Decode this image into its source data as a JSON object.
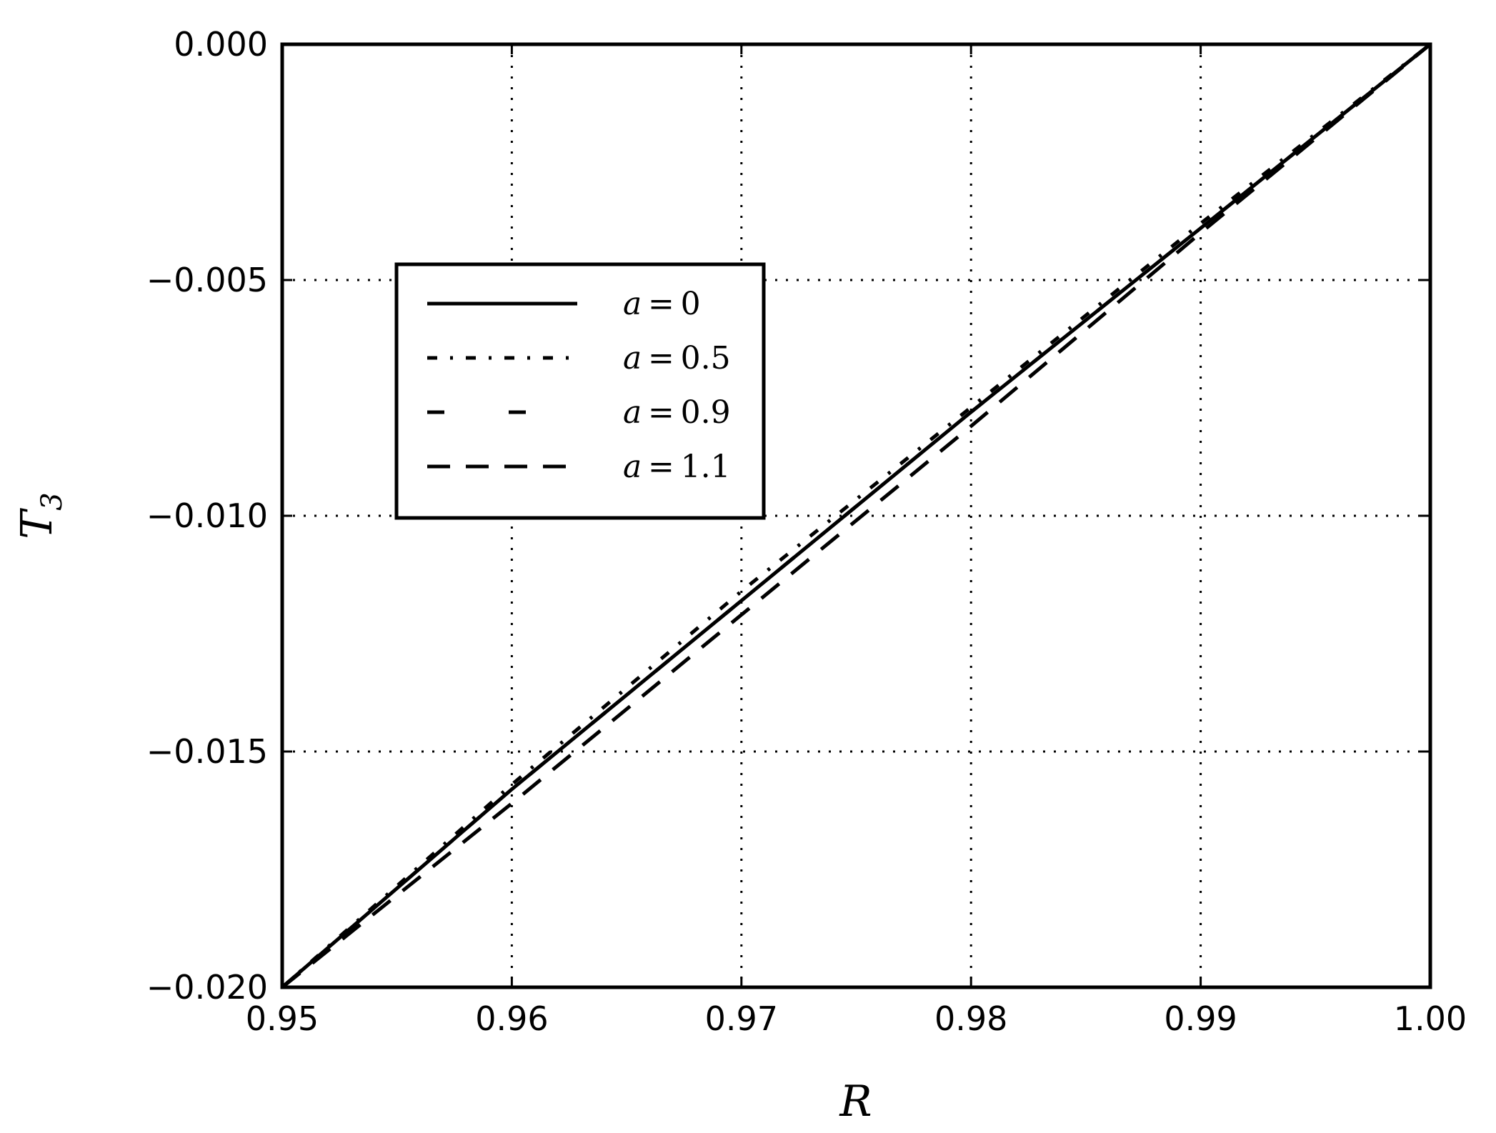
{
  "chart_data": {
    "type": "line",
    "xlabel": "R",
    "ylabel": "T",
    "ylabel_subscript": "3",
    "xlim": [
      0.95,
      1.0
    ],
    "ylim": [
      -0.02,
      0.0
    ],
    "grid": true,
    "legend_position": "upper-left",
    "xticks": [
      0.95,
      0.96,
      0.97,
      0.98,
      0.99,
      1.0
    ],
    "xtick_labels": [
      "0.95",
      "0.96",
      "0.97",
      "0.98",
      "0.99",
      "1.00"
    ],
    "yticks": [
      0.0,
      -0.005,
      -0.01,
      -0.015,
      -0.02
    ],
    "ytick_labels": [
      "0.000",
      "−0.005",
      "−0.010",
      "−0.015",
      "−0.020"
    ],
    "series": [
      {
        "name": "a = 0",
        "var": "a",
        "value": "0",
        "style": "solid",
        "color": "#000000",
        "x": [
          0.95,
          0.96,
          0.97,
          0.98,
          0.99,
          1.0
        ],
        "y": [
          -0.02,
          -0.0158,
          -0.0118,
          -0.0078,
          -0.0039,
          0.0
        ]
      },
      {
        "name": "a = 0.5",
        "var": "a",
        "value": "0.5",
        "style": "dashdot",
        "color": "#000000",
        "x": [
          0.95,
          0.96,
          0.97,
          0.98,
          0.99,
          1.0
        ],
        "y": [
          -0.02,
          -0.0157,
          -0.0116,
          -0.0077,
          -0.0038,
          0.0
        ]
      },
      {
        "name": "a = 0.9",
        "var": "a",
        "value": "0.9",
        "style": "longdash",
        "color": "#000000",
        "x": [
          0.95,
          0.96,
          0.97,
          0.98,
          0.99,
          1.0
        ],
        "y": [
          -0.02,
          -0.0158,
          -0.0118,
          -0.0078,
          -0.0039,
          0.0
        ]
      },
      {
        "name": "a = 1.1",
        "var": "a",
        "value": "1.1",
        "style": "dashed",
        "color": "#000000",
        "x": [
          0.95,
          0.96,
          0.97,
          0.98,
          0.99,
          1.0
        ],
        "y": [
          -0.02,
          -0.0161,
          -0.0121,
          -0.0081,
          -0.004,
          0.0
        ]
      }
    ]
  }
}
